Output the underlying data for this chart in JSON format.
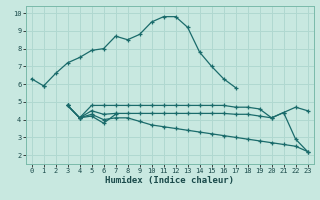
{
  "xlabel": "Humidex (Indice chaleur)",
  "xlim": [
    -0.5,
    23.5
  ],
  "ylim": [
    1.5,
    10.4
  ],
  "yticks": [
    2,
    3,
    4,
    5,
    6,
    7,
    8,
    9,
    10
  ],
  "xticks": [
    0,
    1,
    2,
    3,
    4,
    5,
    6,
    7,
    8,
    9,
    10,
    11,
    12,
    13,
    14,
    15,
    16,
    17,
    18,
    19,
    20,
    21,
    22,
    23
  ],
  "bg_color": "#c8e8e0",
  "line_color": "#1a6b6b",
  "grid_color": "#b0d8d0",
  "line1_x": [
    0,
    1
  ],
  "line1_y": [
    6.3,
    5.9
  ],
  "line2_x": [
    1,
    2,
    3,
    4,
    5,
    6,
    7,
    8,
    9,
    10,
    11,
    12,
    13,
    14,
    15,
    16,
    17
  ],
  "line2_y": [
    5.9,
    6.6,
    7.2,
    7.5,
    7.9,
    8.0,
    8.7,
    8.5,
    8.8,
    9.5,
    9.8,
    9.8,
    9.2,
    7.8,
    7.0,
    6.3,
    5.8
  ],
  "line3_x": [
    3,
    4,
    5,
    6,
    7
  ],
  "line3_y": [
    4.8,
    4.1,
    4.2,
    3.8,
    4.3
  ],
  "line4_x": [
    3,
    4,
    5,
    6,
    7,
    8,
    9,
    10,
    11,
    12,
    13,
    14,
    15,
    16,
    17,
    18,
    19,
    20,
    21,
    22,
    23
  ],
  "line4_y": [
    4.8,
    4.1,
    4.8,
    4.8,
    4.8,
    4.8,
    4.8,
    4.8,
    4.8,
    4.8,
    4.8,
    4.8,
    4.8,
    4.8,
    4.7,
    4.7,
    4.6,
    4.1,
    4.4,
    4.7,
    4.5
  ],
  "line5_x": [
    3,
    4,
    5,
    6,
    7,
    8,
    9,
    10,
    11,
    12,
    13,
    14,
    15,
    16,
    17,
    18,
    19,
    20,
    21,
    22,
    23
  ],
  "line5_y": [
    4.8,
    4.1,
    4.5,
    4.3,
    4.35,
    4.35,
    4.35,
    4.35,
    4.35,
    4.35,
    4.35,
    4.35,
    4.35,
    4.35,
    4.3,
    4.3,
    4.2,
    4.1,
    4.4,
    2.9,
    2.2
  ],
  "line6_x": [
    3,
    4,
    5,
    6,
    7,
    8,
    9,
    10,
    11,
    12,
    13,
    14,
    15,
    16,
    17,
    18,
    19,
    20,
    21,
    22,
    23
  ],
  "line6_y": [
    4.8,
    4.1,
    4.3,
    4.0,
    4.1,
    4.1,
    3.9,
    3.7,
    3.6,
    3.5,
    3.4,
    3.3,
    3.2,
    3.1,
    3.0,
    2.9,
    2.8,
    2.7,
    2.6,
    2.5,
    2.2
  ]
}
